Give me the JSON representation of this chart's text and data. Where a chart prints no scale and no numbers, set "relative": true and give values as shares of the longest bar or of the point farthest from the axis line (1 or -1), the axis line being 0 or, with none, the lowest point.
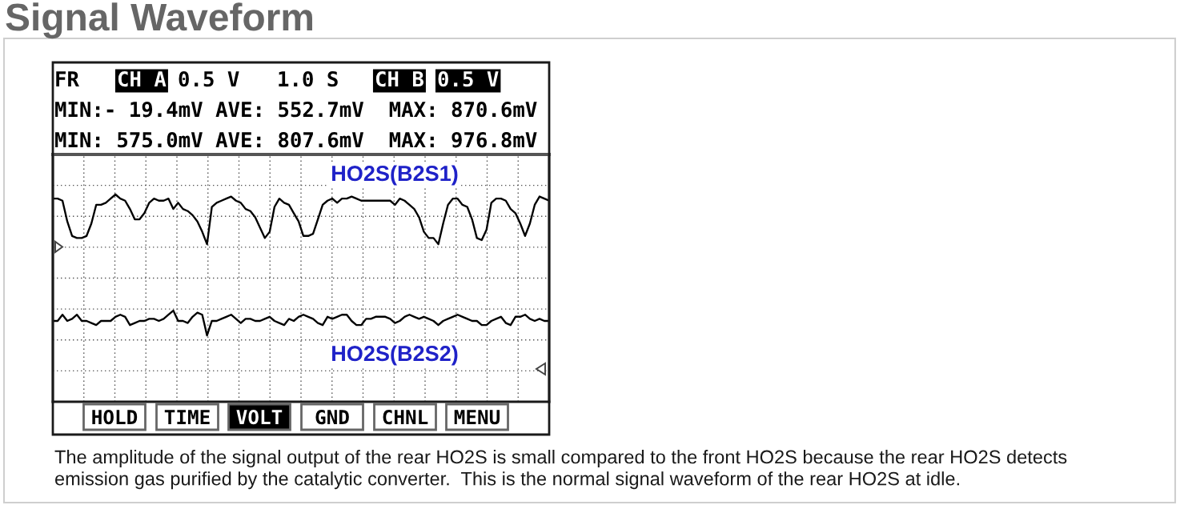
{
  "chart_data": {
    "type": "line",
    "title": "Signal Waveform",
    "relative": true,
    "grid": true,
    "tick_labels": false,
    "line_style": "solid",
    "categories": [
      null,
      null,
      null,
      null,
      null,
      null,
      null,
      null,
      null,
      null,
      null,
      null,
      null,
      null,
      null,
      null,
      null,
      null,
      null,
      null,
      null,
      null,
      null,
      null,
      null,
      null,
      null,
      null,
      null,
      null,
      null,
      null,
      null,
      null,
      null,
      null,
      null,
      null,
      null,
      null,
      null,
      null,
      null,
      null,
      null,
      null,
      null,
      null,
      null,
      null,
      null,
      null,
      null,
      null,
      null,
      null,
      null,
      null,
      null,
      null,
      null,
      null,
      null,
      null,
      null,
      null,
      null,
      null,
      null,
      null,
      null,
      null,
      null,
      null,
      null,
      null,
      null,
      null,
      null,
      null,
      null,
      null,
      null,
      null,
      null,
      null,
      null,
      null,
      null,
      null,
      null,
      null,
      null,
      null,
      null,
      null,
      null,
      null,
      null,
      null,
      null,
      null,
      null,
      null
    ],
    "series": [
      {
        "name": "HO2S(B2S1)",
        "color": "#000000",
        "values": [
          0.98,
          0.98,
          0.97,
          0.87,
          0.8,
          0.79,
          0.79,
          0.8,
          0.86,
          0.95,
          0.95,
          0.96,
          0.98,
          1.0,
          0.98,
          0.97,
          0.93,
          0.88,
          0.88,
          0.91,
          0.96,
          0.98,
          0.97,
          0.97,
          0.98,
          0.93,
          0.96,
          0.93,
          0.92,
          0.9,
          0.87,
          0.82,
          0.76,
          0.94,
          0.96,
          0.97,
          0.98,
          0.99,
          0.97,
          0.96,
          0.93,
          0.92,
          0.89,
          0.84,
          0.79,
          0.82,
          0.94,
          0.98,
          0.96,
          0.95,
          0.91,
          0.87,
          0.8,
          0.8,
          0.81,
          0.88,
          0.95,
          0.97,
          0.98,
          0.96,
          0.98,
          0.98,
          0.99,
          0.98,
          0.97,
          0.97,
          0.97,
          0.97,
          0.97,
          0.97,
          0.97,
          0.95,
          0.98,
          0.97,
          0.95,
          0.93,
          0.89,
          0.82,
          0.79,
          0.79,
          0.76,
          0.86,
          0.95,
          0.98,
          0.98,
          0.95,
          0.94,
          0.88,
          0.79,
          0.78,
          0.83,
          0.96,
          0.98,
          0.98,
          0.97,
          0.93,
          0.91,
          0.86,
          0.8,
          0.86,
          0.95,
          0.99,
          0.98,
          0.97
        ]
      },
      {
        "name": "HO2S(B2S2)",
        "color": "#000000",
        "values": [
          0.39,
          0.39,
          0.42,
          0.39,
          0.4,
          0.42,
          0.39,
          0.39,
          0.38,
          0.37,
          0.39,
          0.39,
          0.39,
          0.41,
          0.42,
          0.41,
          0.37,
          0.38,
          0.39,
          0.39,
          0.4,
          0.4,
          0.39,
          0.4,
          0.42,
          0.44,
          0.39,
          0.39,
          0.38,
          0.41,
          0.43,
          0.42,
          0.32,
          0.39,
          0.39,
          0.4,
          0.41,
          0.42,
          0.4,
          0.38,
          0.4,
          0.4,
          0.39,
          0.39,
          0.4,
          0.41,
          0.39,
          0.38,
          0.37,
          0.4,
          0.39,
          0.41,
          0.42,
          0.41,
          0.4,
          0.38,
          0.37,
          0.41,
          0.4,
          0.41,
          0.42,
          0.42,
          0.39,
          0.37,
          0.37,
          0.4,
          0.4,
          0.41,
          0.41,
          0.41,
          0.4,
          0.38,
          0.39,
          0.41,
          0.42,
          0.41,
          0.4,
          0.41,
          0.4,
          0.39,
          0.37,
          0.39,
          0.4,
          0.41,
          0.42,
          0.41,
          0.4,
          0.39,
          0.39,
          0.37,
          0.37,
          0.39,
          0.4,
          0.41,
          0.38,
          0.37,
          0.41,
          0.41,
          0.42,
          0.4,
          0.39,
          0.4,
          0.39,
          0.39
        ]
      }
    ],
    "annotations": [
      "FR",
      "CH A",
      "0.5 V",
      "1.0 S",
      "CH B",
      "0.5 V",
      "MIN:- 19.4mV AVE: 552.7mV  MAX: 870.6mV",
      "MIN: 575.0mV AVE: 807.6mV  MAX: 976.8mV",
      "HOLD",
      "TIME",
      "VOLT",
      "GND",
      "CHNL",
      "MENU",
      "The amplitude of the signal output of the rear HO2S is small compared to the front HO2S because the rear HO2S detects emission gas purified by the catalytic converter.  This is the normal signal waveform of the rear HO2S at idle."
    ]
  }
}
